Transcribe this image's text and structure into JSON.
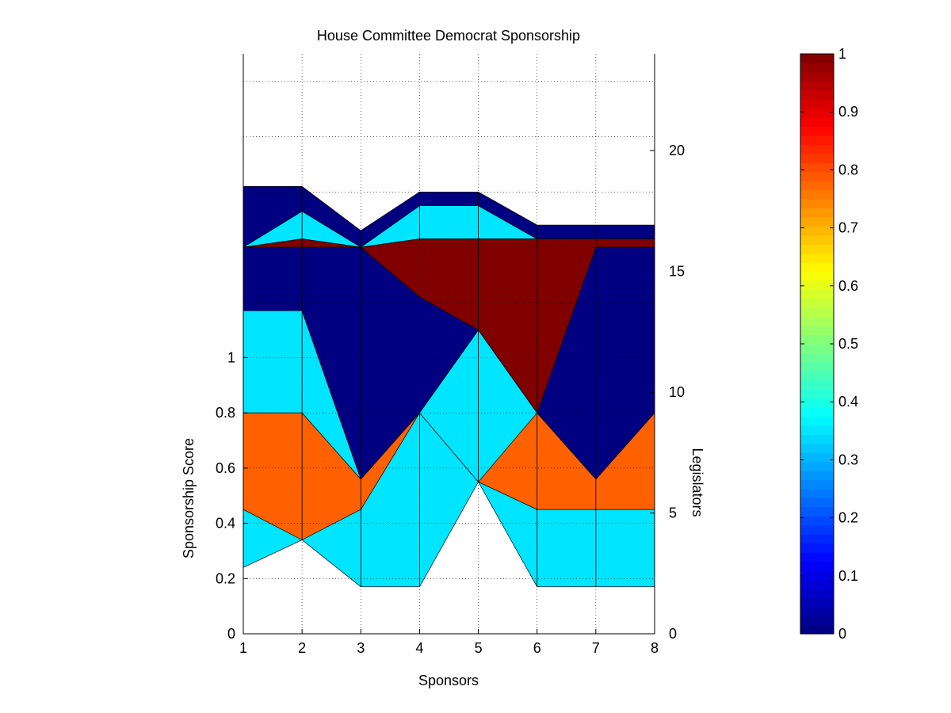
{
  "chart_data": {
    "type": "area",
    "title": "House Committee Democrat Sponsorship",
    "xlabel": "Sponsors",
    "ylabel": "Sponsorship Score",
    "y2label": "Legislators",
    "xlim": [
      1,
      8
    ],
    "x_ticks": [
      "1",
      "2",
      "3",
      "4",
      "5",
      "6",
      "7",
      "8"
    ],
    "ylim": [
      0,
      2.1
    ],
    "y_ticks": [
      "0",
      "0.2",
      "0.4",
      "0.6",
      "0.8",
      "1"
    ],
    "y2lim": [
      0,
      24
    ],
    "y2_ticks": [
      "0",
      "5",
      "10",
      "15",
      "20"
    ],
    "grid": true,
    "colorbar": {
      "colormap": "jet",
      "range": [
        0,
        1
      ],
      "ticks": [
        "0",
        "0.1",
        "0.2",
        "0.3",
        "0.4",
        "0.5",
        "0.6",
        "0.7",
        "0.8",
        "0.9",
        "1"
      ]
    },
    "x": [
      1,
      2,
      3,
      4,
      5,
      6,
      7,
      8
    ],
    "stacked_layers": [
      {
        "color_value": 0.35,
        "top": [
          0.8,
          0.8,
          0.45,
          0.8,
          0.55,
          0.45,
          0.45,
          0.45
        ],
        "bottom": [
          0.24,
          0.34,
          0.17,
          0.17,
          0.55,
          0.17,
          0.17,
          0.17
        ]
      },
      {
        "color_value": 0.78,
        "top": [
          0.8,
          0.8,
          0.56,
          0.8,
          0.8,
          0.8,
          0.56,
          0.8
        ],
        "bottom": [
          0.45,
          0.34,
          0.45,
          0.8,
          0.55,
          0.45,
          0.45,
          0.45
        ]
      },
      {
        "color_value": 0.35,
        "top": [
          1.17,
          1.17,
          0.56,
          0.8,
          1.1,
          0.8,
          0.56,
          0.8
        ],
        "bottom": [
          0.8,
          0.8,
          0.56,
          0.8,
          0.55,
          0.8,
          0.56,
          0.8
        ]
      },
      {
        "color_value": 0.0,
        "top": [
          1.4,
          1.4,
          1.4,
          1.22,
          1.4,
          1.4,
          1.4,
          1.4
        ],
        "bottom": [
          1.17,
          1.17,
          0.56,
          0.8,
          1.1,
          0.8,
          0.56,
          0.8
        ]
      },
      {
        "color_value": 1.0,
        "top": [
          1.4,
          1.43,
          1.4,
          1.43,
          1.43,
          1.43,
          1.43,
          1.43
        ],
        "bottom": [
          1.4,
          1.4,
          1.4,
          1.22,
          1.1,
          0.8,
          1.4,
          1.4
        ]
      },
      {
        "color_value": 0.35,
        "top": [
          1.4,
          1.53,
          1.4,
          1.55,
          1.55,
          1.43,
          1.43,
          1.43
        ],
        "bottom": [
          1.4,
          1.43,
          1.4,
          1.43,
          1.43,
          1.43,
          1.43,
          1.43
        ]
      },
      {
        "color_value": 0.0,
        "top": [
          1.62,
          1.62,
          1.46,
          1.6,
          1.6,
          1.48,
          1.48,
          1.48
        ],
        "bottom": [
          1.4,
          1.53,
          1.4,
          1.55,
          1.55,
          1.43,
          1.43,
          1.43
        ]
      }
    ]
  }
}
